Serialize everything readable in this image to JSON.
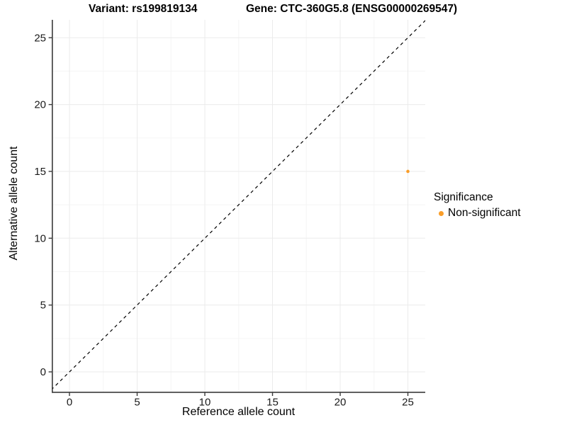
{
  "title": {
    "variant": "Variant: rs199819134",
    "gene": "Gene: CTC-360G5.8 (ENSG00000269547)"
  },
  "axes": {
    "x": {
      "label": "Reference allele count"
    },
    "y": {
      "label": "Alternative allele count"
    }
  },
  "legend": {
    "title": "Significance",
    "items": [
      {
        "label": "Non-significant",
        "color": "#FA9E29"
      }
    ]
  },
  "colors": {
    "grid_major": "#EBEBEB",
    "grid_minor": "#F5F5F5",
    "axis_line": "#3A3A3A",
    "tick_text": "#1A1A1A",
    "reference_line": "#000000",
    "point": "#FA9E29",
    "background": "#FFFFFF"
  },
  "chart_data": {
    "type": "scatter",
    "title_left": "Variant: rs199819134",
    "title_right": "Gene: CTC-360G5.8 (ENSG00000269547)",
    "xlabel": "Reference allele count",
    "ylabel": "Alternative allele count",
    "xlim": [
      -1.35,
      26.35
    ],
    "ylim": [
      -1.35,
      26.35
    ],
    "x_ticks": [
      0,
      5,
      10,
      15,
      20,
      25
    ],
    "y_ticks": [
      0,
      5,
      10,
      15,
      20,
      25
    ],
    "x_minor_ticks": [
      2.5,
      7.5,
      12.5,
      17.5,
      22.5
    ],
    "y_minor_ticks": [
      2.5,
      7.5,
      12.5,
      17.5,
      22.5
    ],
    "grid": "on",
    "legend_position": "right",
    "series": [
      {
        "name": "Non-significant",
        "color": "#FA9E29",
        "points": [
          {
            "x": 25,
            "y": 15
          }
        ]
      }
    ],
    "reference_line": {
      "type": "identity y=x",
      "style": "dashed",
      "color": "#000000"
    }
  }
}
